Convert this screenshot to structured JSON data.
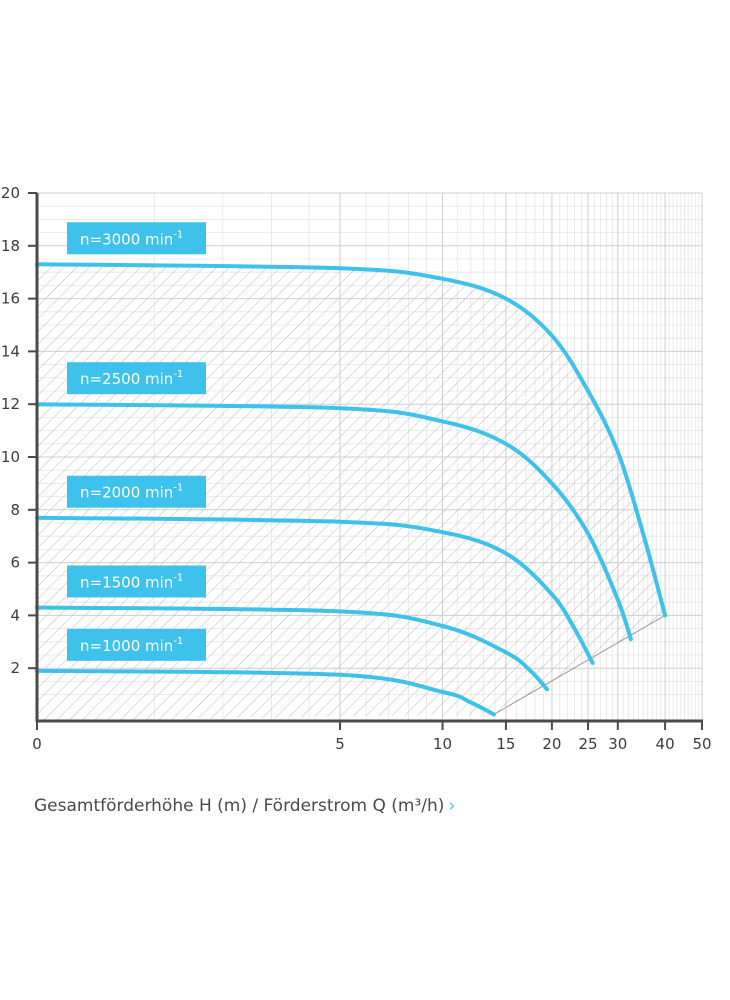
{
  "chart_data": {
    "type": "line",
    "title": "",
    "xlabel": "",
    "ylabel": "",
    "x_scale": "log",
    "xlim": [
      0,
      50
    ],
    "ylim": [
      0,
      20
    ],
    "x_ticks": [
      0,
      5,
      10,
      15,
      20,
      25,
      30,
      40,
      50
    ],
    "y_ticks": [
      2,
      4,
      6,
      8,
      10,
      12,
      14,
      16,
      18,
      20
    ],
    "grid": true,
    "line_color": "#3ec2ec",
    "label_bg": "#3ec2ec",
    "axis_color": "#4a4a4a",
    "grid_color": "#cfcfcf",
    "hatch_color": "#bdbdbd",
    "series": [
      {
        "name": "n=3000 min",
        "unit_sup": "-1",
        "points": [
          [
            0,
            17.3
          ],
          [
            5,
            17.15
          ],
          [
            10,
            16.75
          ],
          [
            15,
            16.0
          ],
          [
            20,
            14.6
          ],
          [
            25,
            12.5
          ],
          [
            30,
            10.2
          ],
          [
            35,
            7.1
          ],
          [
            40,
            4.0
          ]
        ]
      },
      {
        "name": "n=2500 min",
        "unit_sup": "-1",
        "points": [
          [
            0,
            12.0
          ],
          [
            5,
            11.85
          ],
          [
            10,
            11.35
          ],
          [
            15,
            10.5
          ],
          [
            20,
            9.0
          ],
          [
            25,
            7.1
          ],
          [
            30,
            4.6
          ],
          [
            32.5,
            3.1
          ]
        ]
      },
      {
        "name": "n=2000 min",
        "unit_sup": "-1",
        "points": [
          [
            0,
            7.7
          ],
          [
            5,
            7.55
          ],
          [
            10,
            7.15
          ],
          [
            15,
            6.35
          ],
          [
            20,
            4.8
          ],
          [
            23,
            3.5
          ],
          [
            25.7,
            2.2
          ]
        ]
      },
      {
        "name": "n=1500 min",
        "unit_sup": "-1",
        "points": [
          [
            0,
            4.3
          ],
          [
            5,
            4.15
          ],
          [
            10,
            3.6
          ],
          [
            15,
            2.6
          ],
          [
            17.5,
            1.9
          ],
          [
            19.4,
            1.2
          ]
        ]
      },
      {
        "name": "n=1000 min",
        "unit_sup": "-1",
        "points": [
          [
            0,
            1.9
          ],
          [
            5,
            1.75
          ],
          [
            10,
            1.1
          ],
          [
            12,
            0.7
          ],
          [
            13.9,
            0.25
          ]
        ]
      }
    ],
    "boundary": [
      [
        13.9,
        0.25
      ],
      [
        40,
        4.0
      ]
    ]
  },
  "caption": {
    "text": "Gesamtförderhöhe H (m) / Förderstrom Q (m³/h)",
    "chevron": "›"
  }
}
